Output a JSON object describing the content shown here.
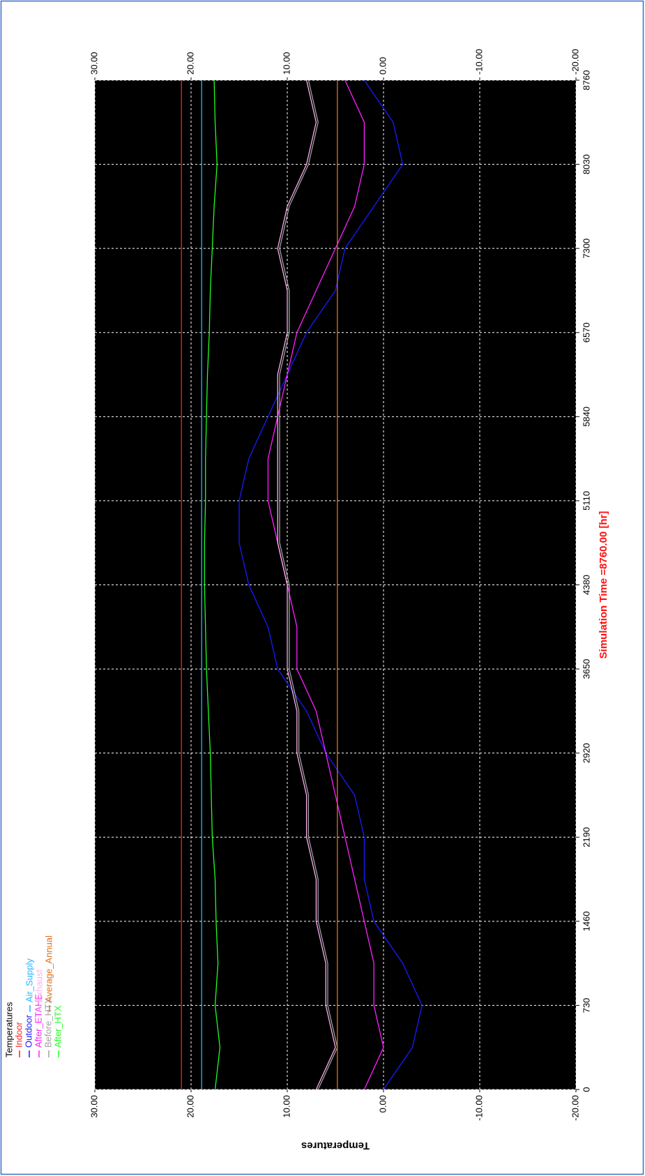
{
  "chart_data": {
    "type": "line",
    "title": "Temperatures",
    "x_label": "Simulation Time =8760.00 [hr]",
    "y_label": "Temperatures",
    "x": [
      0,
      365,
      730,
      1095,
      1460,
      1825,
      2190,
      2555,
      2920,
      3285,
      3650,
      4015,
      4380,
      4745,
      5110,
      5475,
      5840,
      6205,
      6570,
      6935,
      7300,
      7665,
      8030,
      8395,
      8760
    ],
    "series": [
      {
        "name": "Indoor",
        "color": "#ff2020",
        "values": [
          21,
          21,
          21,
          21,
          21,
          21,
          21,
          21,
          21,
          21,
          21,
          21,
          21,
          21,
          21,
          21,
          21,
          21,
          21,
          21,
          21,
          21,
          21,
          21,
          21
        ]
      },
      {
        "name": "Outdoor",
        "color": "#1a1aff",
        "values": [
          0,
          -3,
          -4,
          -2,
          1,
          2,
          2,
          3,
          6,
          8,
          11,
          12,
          14,
          15,
          15,
          14,
          12,
          10,
          8,
          5,
          4,
          1,
          -2,
          -1,
          2
        ]
      },
      {
        "name": "After_ETAHE",
        "color": "#ff20ff",
        "values": [
          2,
          0,
          1,
          1,
          2,
          3,
          4,
          5,
          6,
          7,
          9,
          9,
          10,
          11,
          12,
          12,
          11,
          10,
          9,
          7,
          5,
          3,
          2,
          2,
          4
        ]
      },
      {
        "name": "Before_HTX",
        "color": "#a0a0a0",
        "values": [
          6.8,
          4.8,
          5.8,
          5.8,
          6.8,
          6.8,
          7.8,
          7.8,
          8.8,
          8.8,
          9.8,
          9.8,
          9.8,
          10.8,
          10.8,
          10.8,
          10.8,
          10.8,
          9.8,
          9.8,
          10.8,
          9.8,
          7.8,
          6.8,
          7.8
        ]
      },
      {
        "name": "After_HTX",
        "color": "#20ff20",
        "values": [
          17.5,
          17,
          17.5,
          17.2,
          17.4,
          17.5,
          17.8,
          17.9,
          18,
          18.2,
          18.4,
          18.5,
          18.6,
          18.6,
          18.5,
          18.5,
          18.4,
          18.3,
          18.1,
          18,
          17.8,
          17.6,
          17.3,
          17.5,
          17.6
        ]
      },
      {
        "name": "Air_Supply",
        "color": "#20b8ff",
        "values": [
          18.9,
          18.9,
          18.9,
          18.9,
          18.9,
          18.9,
          18.9,
          18.9,
          18.9,
          18.9,
          18.9,
          18.9,
          18.9,
          18.9,
          18.9,
          18.9,
          18.9,
          18.9,
          18.9,
          18.9,
          18.9,
          18.9,
          18.9,
          18.9,
          18.9
        ]
      },
      {
        "name": "Exhaust",
        "color": "#ffb0f0",
        "values": [
          7,
          5,
          6,
          6,
          7,
          7,
          8,
          8,
          9,
          9,
          10,
          10,
          10,
          11,
          11,
          11,
          11,
          11,
          10,
          10,
          11,
          10,
          8,
          7,
          8
        ]
      },
      {
        "name": "Average_Annual",
        "color": "#e07020",
        "values": [
          4.8,
          4.8,
          4.8,
          4.8,
          4.8,
          4.8,
          4.8,
          4.8,
          4.8,
          4.8,
          4.8,
          4.8,
          4.8,
          4.8,
          4.8,
          4.8,
          4.8,
          4.8,
          4.8,
          4.8,
          4.8,
          4.8,
          4.8,
          4.8,
          4.8
        ]
      }
    ],
    "xlim": [
      0,
      8760
    ],
    "xticks": [
      0,
      730,
      1460,
      2190,
      2920,
      3650,
      4380,
      5110,
      5840,
      6570,
      7300,
      8030,
      8760
    ],
    "ylim": [
      -20,
      30
    ],
    "yticks": [
      {
        "value": -20,
        "label": "-20.00"
      },
      {
        "value": -10,
        "label": "-10.00"
      },
      {
        "value": 0,
        "label": "0.00"
      },
      {
        "value": 10,
        "label": "10.00"
      },
      {
        "value": 20,
        "label": "20.00"
      },
      {
        "value": 30,
        "label": "30.00"
      }
    ],
    "grid": true
  }
}
